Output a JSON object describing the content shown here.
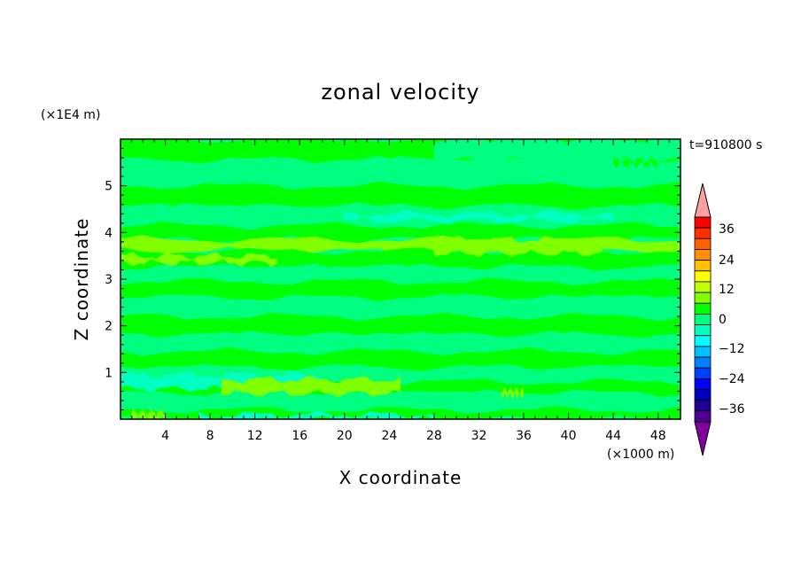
{
  "chart_data": {
    "type": "heatmap",
    "title": "zonal velocity",
    "xlabel": "X coordinate",
    "ylabel": "Z coordinate",
    "x_unit": "(×1000 m)",
    "y_unit": "(×1E4 m)",
    "time_label": "t=910800 s",
    "xlim": [
      0,
      50
    ],
    "ylim": [
      0,
      6
    ],
    "x_ticks": [
      4,
      8,
      12,
      16,
      20,
      24,
      28,
      32,
      36,
      40,
      44,
      48
    ],
    "y_ticks": [
      1,
      2,
      3,
      4,
      5
    ],
    "levels": [
      -36,
      -12,
      -24,
      0,
      12,
      24,
      36
    ],
    "field_bands": [
      {
        "z": [
          5.55,
          6.0
        ],
        "value": 2
      },
      {
        "z": [
          5.0,
          5.55
        ],
        "value": -2
      },
      {
        "z": [
          4.55,
          5.0
        ],
        "value": 2
      },
      {
        "z": [
          4.15,
          4.55
        ],
        "value": -4
      },
      {
        "z": [
          3.85,
          4.15
        ],
        "value": 1
      },
      {
        "z": [
          3.6,
          3.85
        ],
        "value": 6
      },
      {
        "z": [
          3.25,
          3.6
        ],
        "value": 2
      },
      {
        "z": [
          2.95,
          3.25
        ],
        "value": -2
      },
      {
        "z": [
          2.6,
          2.95
        ],
        "value": 2
      },
      {
        "z": [
          2.2,
          2.6
        ],
        "value": -1
      },
      {
        "z": [
          1.8,
          2.2
        ],
        "value": 2
      },
      {
        "z": [
          1.45,
          1.8
        ],
        "value": -2
      },
      {
        "z": [
          1.1,
          1.45
        ],
        "value": 2
      },
      {
        "z": [
          0.8,
          1.1
        ],
        "value": -2
      },
      {
        "z": [
          0.55,
          0.8
        ],
        "value": 2
      },
      {
        "z": [
          0.2,
          0.55
        ],
        "value": -2
      },
      {
        "z": [
          0.0,
          0.2
        ],
        "value": 2
      }
    ],
    "field_patches": [
      {
        "x": [
          0,
          18
        ],
        "z": [
          0.65,
          0.95
        ],
        "value": -5
      },
      {
        "x": [
          9,
          25
        ],
        "z": [
          0.55,
          0.85
        ],
        "value": 6
      },
      {
        "x": [
          34,
          36
        ],
        "z": [
          0.5,
          0.62
        ],
        "value": 6
      },
      {
        "x": [
          1,
          4
        ],
        "z": [
          0.0,
          0.15
        ],
        "value": 6
      },
      {
        "x": [
          7,
          28
        ],
        "z": [
          0.0,
          0.1
        ],
        "value": -5
      },
      {
        "x": [
          28,
          43
        ],
        "z": [
          3.55,
          3.85
        ],
        "value": 6
      },
      {
        "x": [
          0,
          14
        ],
        "z": [
          3.35,
          3.5
        ],
        "value": 6
      },
      {
        "x": [
          20,
          44
        ],
        "z": [
          4.25,
          4.4
        ],
        "value": -6
      },
      {
        "x": [
          28,
          50
        ],
        "z": [
          5.55,
          6.0
        ],
        "value": -2
      },
      {
        "x": [
          44,
          48
        ],
        "z": [
          5.45,
          5.55
        ],
        "value": 2
      }
    ],
    "colorbar": {
      "bins": [
        {
          "color": "#ffa0a0",
          "type": "overflow-high"
        },
        {
          "color": "#ff0000"
        },
        {
          "color": "#ff3000"
        },
        {
          "color": "#ff6000"
        },
        {
          "color": "#ff9000"
        },
        {
          "color": "#ffc000"
        },
        {
          "color": "#ffff00"
        },
        {
          "color": "#c0ff00"
        },
        {
          "color": "#80ff00"
        },
        {
          "color": "#00ff00"
        },
        {
          "color": "#00ff80"
        },
        {
          "color": "#00ffc0"
        },
        {
          "color": "#00ffff"
        },
        {
          "color": "#00c0ff"
        },
        {
          "color": "#0080ff"
        },
        {
          "color": "#0040ff"
        },
        {
          "color": "#0000ff"
        },
        {
          "color": "#0000c0"
        },
        {
          "color": "#200090"
        },
        {
          "color": "#500090"
        },
        {
          "color": "#8000a0",
          "type": "overflow-low"
        }
      ],
      "tick_labels": [
        "36",
        "24",
        "12",
        "0",
        "−12",
        "−24",
        "−36"
      ]
    }
  }
}
